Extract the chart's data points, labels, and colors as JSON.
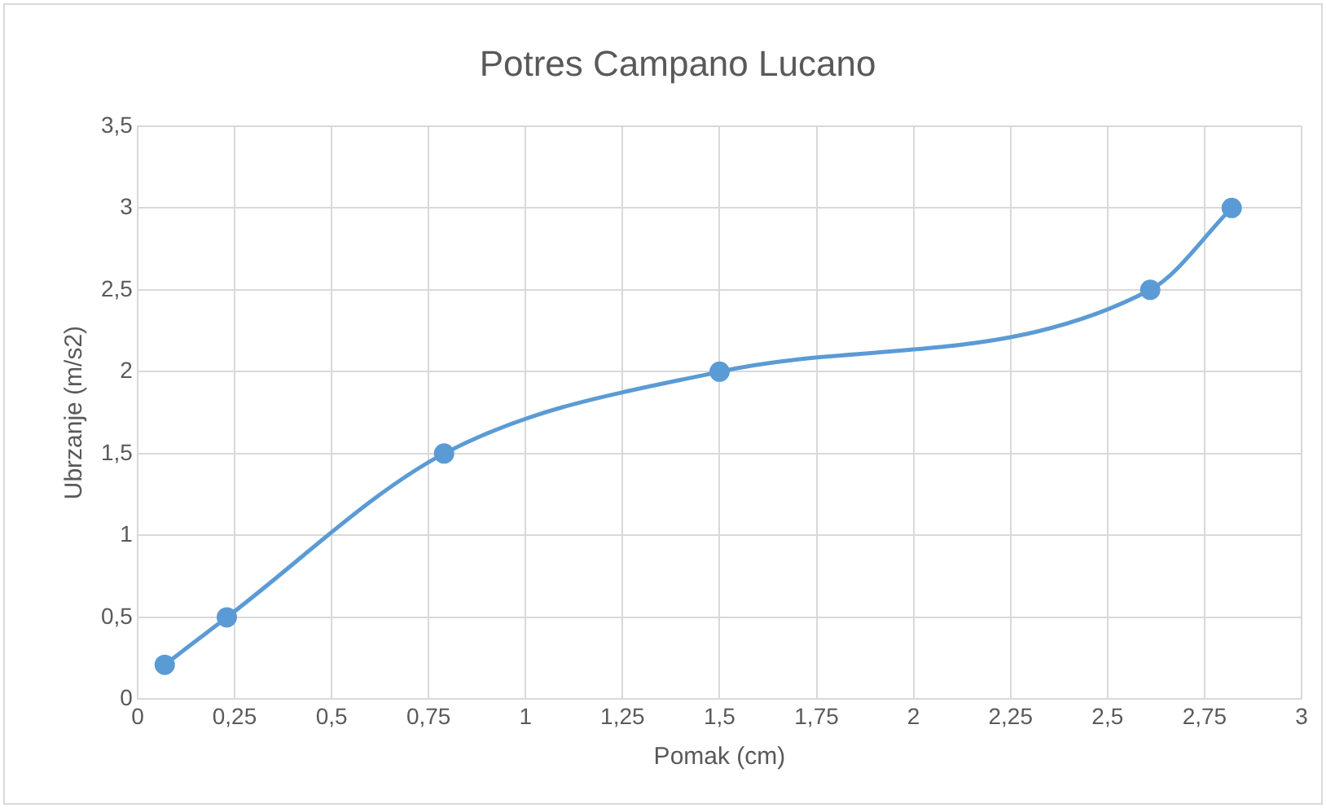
{
  "chart_data": {
    "type": "line",
    "title": "Potres Campano Lucano",
    "xlabel": "Pomak (cm)",
    "ylabel": "Ubrzanje (m/s2)",
    "series": [
      {
        "color": "#5b9bd5",
        "x": [
          0.07,
          0.23,
          0.79,
          1.5,
          2.61,
          2.82
        ],
        "values": [
          0.21,
          0.5,
          1.5,
          2,
          2.5,
          3
        ]
      }
    ],
    "xlim": [
      0,
      3
    ],
    "xticks": [
      0,
      {
        "value": 0.25,
        "label": "0,25"
      },
      {
        "value": 0.5,
        "label": "0,5"
      },
      {
        "value": 0.75,
        "label": "0,75"
      },
      1,
      {
        "value": 1.25,
        "label": "1,25"
      },
      {
        "value": 1.5,
        "label": "1,5"
      },
      {
        "value": 1.75,
        "label": "1,75"
      },
      2,
      {
        "value": 2.25,
        "label": "2,25"
      },
      {
        "value": 2.5,
        "label": "2,5"
      },
      {
        "value": 2.75,
        "label": "2,75"
      },
      3
    ],
    "ylim": [
      0,
      3.5
    ],
    "yticks": [
      0,
      {
        "value": 0.5,
        "label": "0,5"
      },
      1,
      {
        "value": 1.5,
        "label": "1,5"
      },
      2,
      {
        "value": 2.5,
        "label": "2,5"
      },
      3,
      {
        "value": 3.5,
        "label": "3,5"
      }
    ],
    "grid": true,
    "legend": false,
    "marker": "circle",
    "line_style": "solid"
  }
}
